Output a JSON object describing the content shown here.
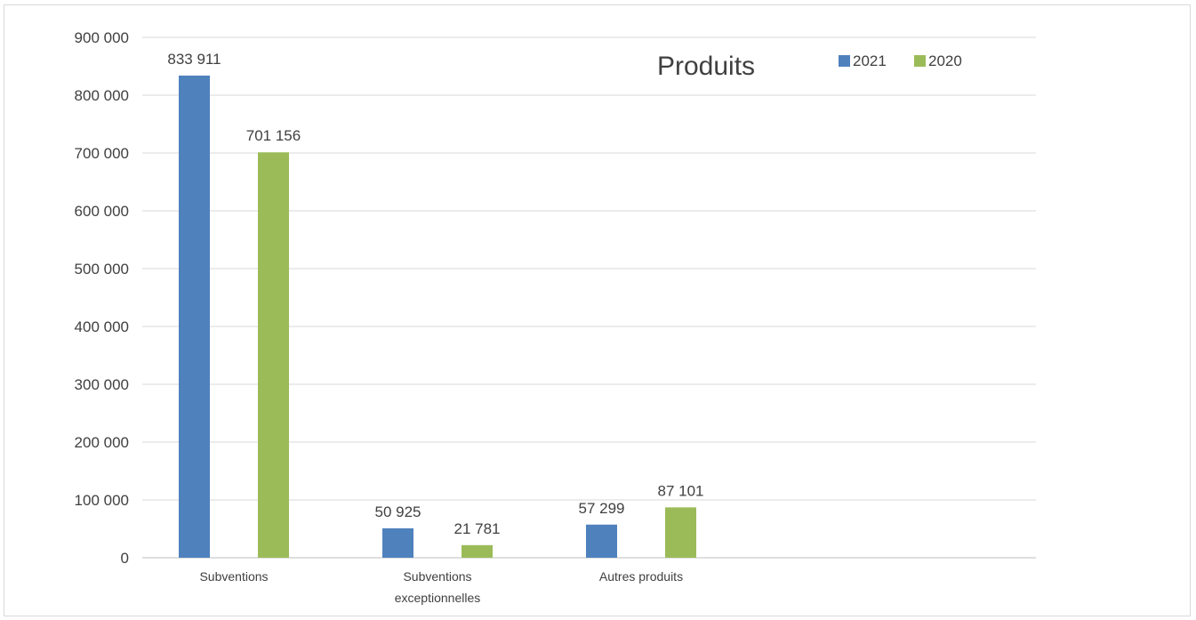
{
  "chart_data": {
    "type": "bar",
    "title": "Produits",
    "categories": [
      [
        "Subventions"
      ],
      [
        "Subventions",
        "exceptionnelles"
      ],
      [
        "Autres produits"
      ]
    ],
    "series": [
      {
        "name": "2021",
        "color": "#4f81bd",
        "values": [
          833911,
          50925,
          57299
        ],
        "value_labels": [
          "833 911",
          "50 925",
          "57 299"
        ]
      },
      {
        "name": "2020",
        "color": "#9bbb59",
        "values": [
          701156,
          21781,
          87101
        ],
        "value_labels": [
          "701 156",
          "21 781",
          "87 101"
        ]
      }
    ],
    "ylim": [
      0,
      900000
    ],
    "yticks": [
      0,
      100000,
      200000,
      300000,
      400000,
      500000,
      600000,
      700000,
      800000,
      900000
    ],
    "ytick_labels": [
      "0",
      "100 000",
      "200 000",
      "300 000",
      "400 000",
      "500 000",
      "600 000",
      "700 000",
      "800 000",
      "900 000"
    ],
    "xlabel": "",
    "ylabel": "",
    "grid": true,
    "legend": "top-right"
  }
}
